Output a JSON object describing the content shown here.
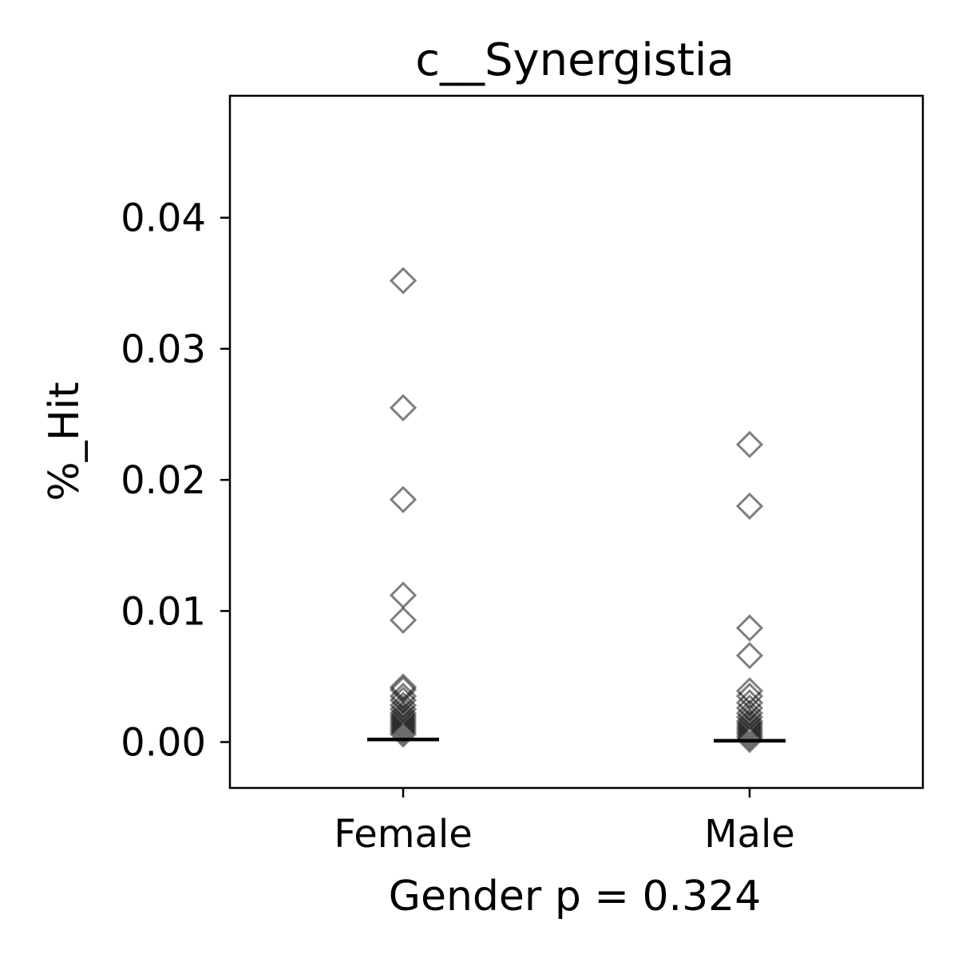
{
  "chart_data": {
    "type": "scatter",
    "title": "c__Synergistia",
    "xlabel": "Gender p = 0.324",
    "ylabel": "%_Hit",
    "categories": [
      "Female",
      "Male"
    ],
    "ylim": [
      -0.0035,
      0.0493
    ],
    "yticks": [
      0.0,
      0.01,
      0.02,
      0.03,
      0.04
    ],
    "ytick_labels": [
      "0.00",
      "0.01",
      "0.02",
      "0.03",
      "0.04"
    ],
    "grid": false,
    "marker": "open-diamond",
    "series": [
      {
        "category": "Female",
        "values": [
          0.0352,
          0.0255,
          0.0185,
          0.0112,
          0.0093,
          0.0042,
          0.004,
          0.0035,
          0.0032,
          0.0028,
          0.0025,
          0.0022,
          0.002,
          0.0018,
          0.0016,
          0.0014,
          0.0012,
          0.001,
          0.0008,
          0.0006
        ],
        "median": 0.0002
      },
      {
        "category": "Male",
        "values": [
          0.0227,
          0.018,
          0.0087,
          0.0066,
          0.0039,
          0.0035,
          0.003,
          0.0026,
          0.0022,
          0.0019,
          0.0016,
          0.0014,
          0.0012,
          0.001,
          0.0008,
          0.0006,
          0.0004,
          0.0002
        ],
        "median": 0.0001
      }
    ]
  }
}
